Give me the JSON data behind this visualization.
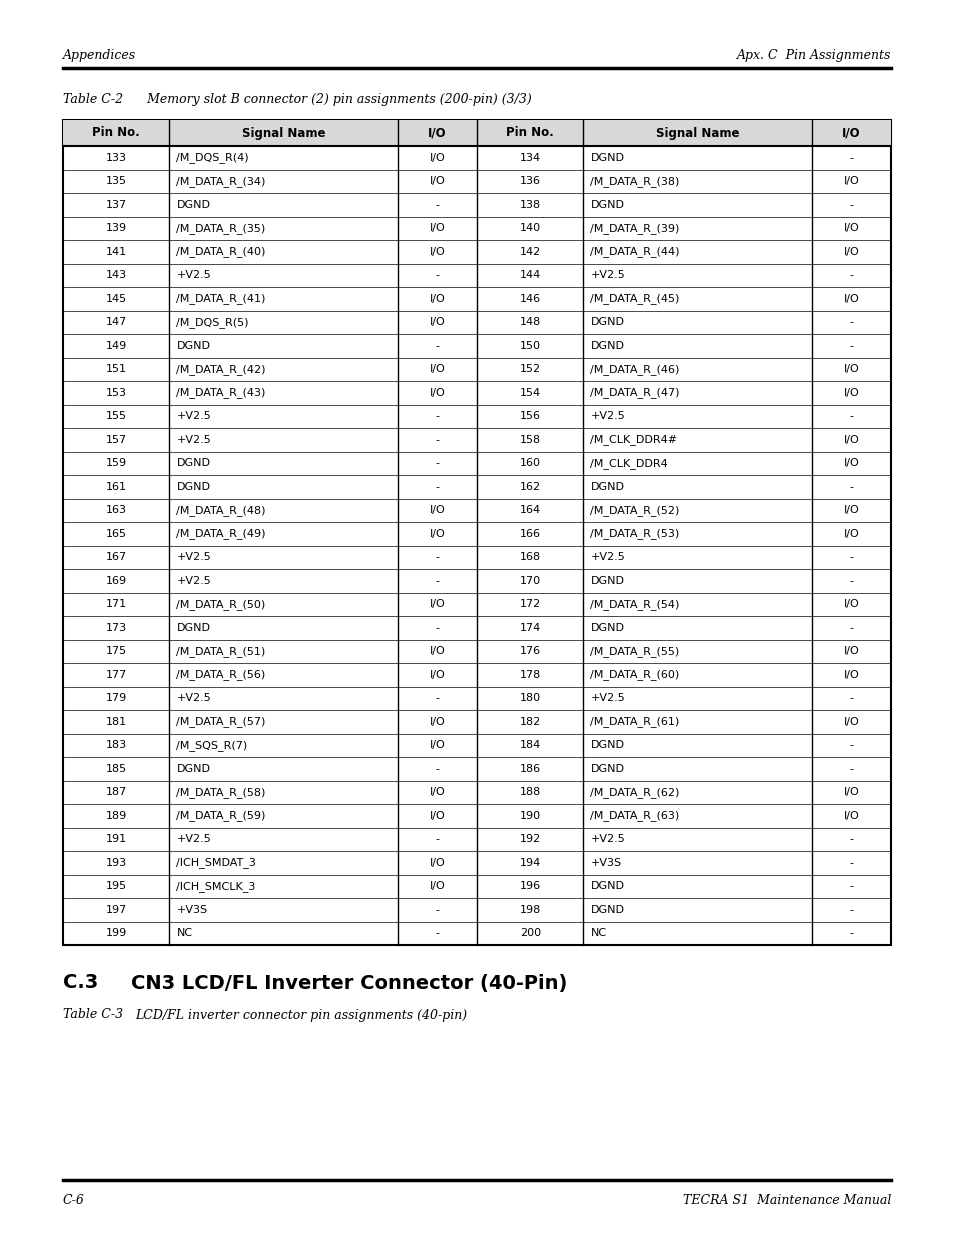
{
  "header_left": "Appendices",
  "header_right": "Apx. C  Pin Assignments",
  "table_caption": "Table C-2      Memory slot B connector (2) pin assignments (200-pin) (3/3)",
  "col_headers": [
    "Pin No.",
    "Signal Name",
    "I/O",
    "Pin No.",
    "Signal Name",
    "I/O"
  ],
  "rows": [
    [
      "133",
      "/M_DQS_R(4)",
      "I/O",
      "134",
      "DGND",
      "-"
    ],
    [
      "135",
      "/M_DATA_R_(34)",
      "I/O",
      "136",
      "/M_DATA_R_(38)",
      "I/O"
    ],
    [
      "137",
      "DGND",
      "-",
      "138",
      "DGND",
      "-"
    ],
    [
      "139",
      "/M_DATA_R_(35)",
      "I/O",
      "140",
      "/M_DATA_R_(39)",
      "I/O"
    ],
    [
      "141",
      "/M_DATA_R_(40)",
      "I/O",
      "142",
      "/M_DATA_R_(44)",
      "I/O"
    ],
    [
      "143",
      "+V2.5",
      "-",
      "144",
      "+V2.5",
      "-"
    ],
    [
      "145",
      "/M_DATA_R_(41)",
      "I/O",
      "146",
      "/M_DATA_R_(45)",
      "I/O"
    ],
    [
      "147",
      "/M_DQS_R(5)",
      "I/O",
      "148",
      "DGND",
      "-"
    ],
    [
      "149",
      "DGND",
      "-",
      "150",
      "DGND",
      "-"
    ],
    [
      "151",
      "/M_DATA_R_(42)",
      "I/O",
      "152",
      "/M_DATA_R_(46)",
      "I/O"
    ],
    [
      "153",
      "/M_DATA_R_(43)",
      "I/O",
      "154",
      "/M_DATA_R_(47)",
      "I/O"
    ],
    [
      "155",
      "+V2.5",
      "-",
      "156",
      "+V2.5",
      "-"
    ],
    [
      "157",
      "+V2.5",
      "-",
      "158",
      "/M_CLK_DDR4#",
      "I/O"
    ],
    [
      "159",
      "DGND",
      "-",
      "160",
      "/M_CLK_DDR4",
      "I/O"
    ],
    [
      "161",
      "DGND",
      "-",
      "162",
      "DGND",
      "-"
    ],
    [
      "163",
      "/M_DATA_R_(48)",
      "I/O",
      "164",
      "/M_DATA_R_(52)",
      "I/O"
    ],
    [
      "165",
      "/M_DATA_R_(49)",
      "I/O",
      "166",
      "/M_DATA_R_(53)",
      "I/O"
    ],
    [
      "167",
      "+V2.5",
      "-",
      "168",
      "+V2.5",
      "-"
    ],
    [
      "169",
      "+V2.5",
      "-",
      "170",
      "DGND",
      "-"
    ],
    [
      "171",
      "/M_DATA_R_(50)",
      "I/O",
      "172",
      "/M_DATA_R_(54)",
      "I/O"
    ],
    [
      "173",
      "DGND",
      "-",
      "174",
      "DGND",
      "-"
    ],
    [
      "175",
      "/M_DATA_R_(51)",
      "I/O",
      "176",
      "/M_DATA_R_(55)",
      "I/O"
    ],
    [
      "177",
      "/M_DATA_R_(56)",
      "I/O",
      "178",
      "/M_DATA_R_(60)",
      "I/O"
    ],
    [
      "179",
      "+V2.5",
      "-",
      "180",
      "+V2.5",
      "-"
    ],
    [
      "181",
      "/M_DATA_R_(57)",
      "I/O",
      "182",
      "/M_DATA_R_(61)",
      "I/O"
    ],
    [
      "183",
      "/M_SQS_R(7)",
      "I/O",
      "184",
      "DGND",
      "-"
    ],
    [
      "185",
      "DGND",
      "-",
      "186",
      "DGND",
      "-"
    ],
    [
      "187",
      "/M_DATA_R_(58)",
      "I/O",
      "188",
      "/M_DATA_R_(62)",
      "I/O"
    ],
    [
      "189",
      "/M_DATA_R_(59)",
      "I/O",
      "190",
      "/M_DATA_R_(63)",
      "I/O"
    ],
    [
      "191",
      "+V2.5",
      "-",
      "192",
      "+V2.5",
      "-"
    ],
    [
      "193",
      "/ICH_SMDAT_3",
      "I/O",
      "194",
      "+V3S",
      "-"
    ],
    [
      "195",
      "/ICH_SMCLK_3",
      "I/O",
      "196",
      "DGND",
      "-"
    ],
    [
      "197",
      "+V3S",
      "-",
      "198",
      "DGND",
      "-"
    ],
    [
      "199",
      "NC",
      "-",
      "200",
      "NC",
      "-"
    ]
  ],
  "section_heading_num": "C.3",
  "section_heading_text": "CN3 LCD/FL Inverter Connector (40-Pin)",
  "table_caption2_label": "Table C-3",
  "table_caption2_text": "LCD/FL inverter connector pin assignments (40-pin)",
  "footer_left": "C-6",
  "footer_right": "TECRA S1  Maintenance Manual",
  "bg_color": "#ffffff",
  "text_color": "#000000"
}
